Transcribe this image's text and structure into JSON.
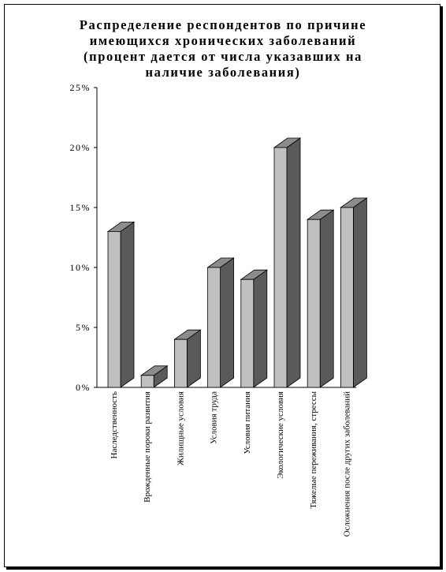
{
  "chart_data": {
    "type": "bar",
    "title": "Распределение респондентов по причине\nимеющихся хронических заболеваний\n(процент дается от числа указавших на\nналичие заболевания)",
    "categories": [
      "Наследственность",
      "Врожденные пороки развития",
      "Жилищные условия",
      "Условия труда",
      "Условия питания",
      "Экологические условия",
      "Тяжелые переживания, стрессы",
      "Осложнения после других заболеваний"
    ],
    "values": [
      13,
      1,
      4,
      10,
      9,
      20,
      14,
      15
    ],
    "unit": "%",
    "ylim": [
      0,
      25
    ],
    "yticks": [
      "0%",
      "5%",
      "10%",
      "15%",
      "20%",
      "25%"
    ],
    "colors": {
      "bar_front": "#c0c0c0",
      "bar_side": "#5a5a5a",
      "bar_top": "#8c8c8c",
      "axis": "#000000"
    },
    "grid": false,
    "legend": "none",
    "style": "3d-column"
  }
}
